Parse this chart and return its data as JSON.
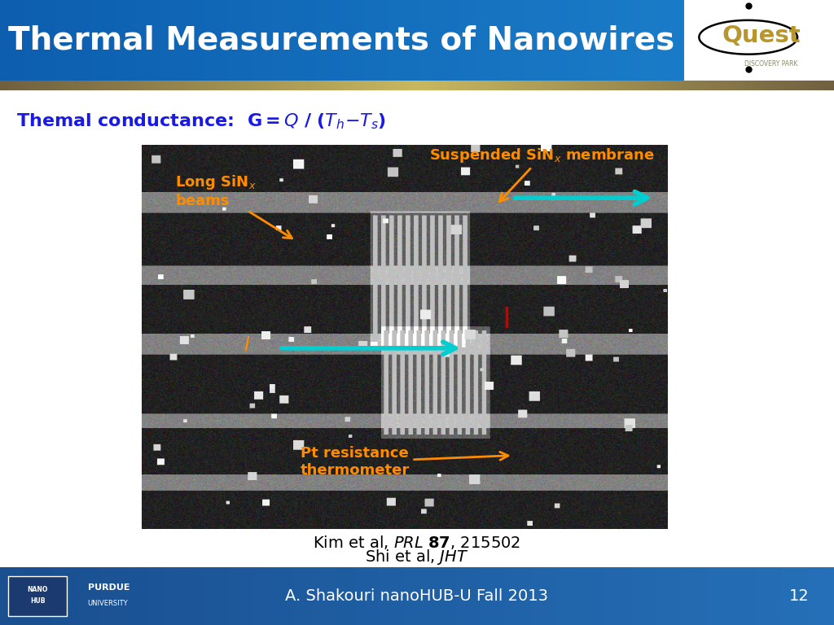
{
  "title": "Thermal Measurements of Nanowires",
  "title_color": "#FFFFFF",
  "slide_bg_color": "#FFFFFF",
  "subtitle_color": "#1A1AE6",
  "citation1": "Kim et al, $\\mathit{PRL}$ $\\mathbf{87}$, 215502",
  "citation2": "Shi et al, $\\mathit{JHT}$",
  "footer_text": "A. Shakouri nanoHUB-U Fall 2013",
  "footer_page": "12",
  "header_colors": [
    "#0D5EAF",
    "#1A7CC8"
  ],
  "sep_colors": [
    "#706040",
    "#C8B860",
    "#706040"
  ],
  "footer_colors": [
    "#1A4F90",
    "#2570B8"
  ],
  "quest_text_color": "#B8962E",
  "orange_color": "#FF8C00",
  "cyan_color": "#00CED1",
  "red_color": "#CC0000"
}
